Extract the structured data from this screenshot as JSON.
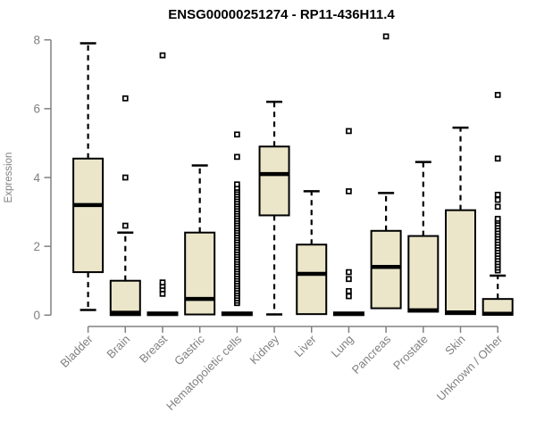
{
  "chart_data": {
    "type": "boxplot",
    "title": "ENSG00000251274 - RP11-436H11.4",
    "xlabel": "",
    "ylabel": "Expression",
    "ylim": [
      0,
      8.4
    ],
    "yticks": [
      0,
      2,
      4,
      6,
      8
    ],
    "grid": false,
    "legend": "none",
    "categories": [
      "Bladder",
      "Brain",
      "Breast",
      "Gastric",
      "Hematopoietic cells",
      "Kidney",
      "Liver",
      "Lung",
      "Pancreas",
      "Prostate",
      "Skin",
      "Unknown / Other"
    ],
    "boxes": [
      {
        "category": "Bladder",
        "whisker_low": 0.15,
        "q1": 1.25,
        "median": 3.2,
        "q3": 4.55,
        "whisker_high": 7.9,
        "outliers": []
      },
      {
        "category": "Brain",
        "whisker_low": 0,
        "q1": 0,
        "median": 0.07,
        "q3": 1.0,
        "whisker_high": 2.4,
        "outliers": [
          2.6,
          4.0,
          6.3
        ]
      },
      {
        "category": "Breast",
        "whisker_low": 0,
        "q1": 0,
        "median": 0.04,
        "q3": 0.08,
        "whisker_high": 0.12,
        "outliers": [
          0.62,
          0.75,
          0.85,
          0.95,
          7.55
        ]
      },
      {
        "category": "Gastric",
        "whisker_low": 0.02,
        "q1": 0.02,
        "median": 0.47,
        "q3": 2.4,
        "whisker_high": 4.35,
        "outliers": []
      },
      {
        "category": "Hematopoietic cells",
        "whisker_low": 0,
        "q1": 0,
        "median": 0.04,
        "q3": 0.08,
        "whisker_high": 0.12,
        "outliers": [
          0.35,
          0.42,
          0.49,
          0.56,
          0.63,
          0.7,
          0.77,
          0.84,
          0.91,
          0.98,
          1.05,
          1.12,
          1.19,
          1.26,
          1.33,
          1.4,
          1.47,
          1.54,
          1.61,
          1.68,
          1.75,
          1.82,
          1.89,
          1.96,
          2.03,
          2.1,
          2.17,
          2.24,
          2.31,
          2.38,
          2.45,
          2.52,
          2.59,
          2.66,
          2.73,
          2.8,
          2.87,
          2.94,
          3.01,
          3.08,
          3.15,
          3.22,
          3.29,
          3.36,
          3.43,
          3.5,
          3.57,
          3.64,
          3.7,
          3.8,
          4.6,
          5.25
        ]
      },
      {
        "category": "Kidney",
        "whisker_low": 0.02,
        "q1": 2.9,
        "median": 4.1,
        "q3": 4.9,
        "whisker_high": 6.2,
        "outliers": []
      },
      {
        "category": "Liver",
        "whisker_low": 0.02,
        "q1": 0.03,
        "median": 1.2,
        "q3": 2.05,
        "whisker_high": 3.6,
        "outliers": []
      },
      {
        "category": "Lung",
        "whisker_low": 0,
        "q1": 0,
        "median": 0.04,
        "q3": 0.08,
        "whisker_high": 0.12,
        "outliers": [
          0.55,
          0.7,
          1.05,
          1.25,
          3.6,
          5.35
        ]
      },
      {
        "category": "Pancreas",
        "whisker_low": 0.15,
        "q1": 0.2,
        "median": 1.4,
        "q3": 2.45,
        "whisker_high": 3.55,
        "outliers": [
          8.1
        ]
      },
      {
        "category": "Prostate",
        "whisker_low": 0.1,
        "q1": 0.1,
        "median": 0.14,
        "q3": 2.3,
        "whisker_high": 4.45,
        "outliers": []
      },
      {
        "category": "Skin",
        "whisker_low": 0.03,
        "q1": 0.03,
        "median": 0.08,
        "q3": 3.05,
        "whisker_high": 5.45,
        "outliers": []
      },
      {
        "category": "Unknown / Other",
        "whisker_low": 0,
        "q1": 0.01,
        "median": 0.04,
        "q3": 0.47,
        "whisker_high": 1.15,
        "outliers": [
          1.3,
          1.38,
          1.46,
          1.54,
          1.62,
          1.7,
          1.78,
          1.86,
          1.94,
          2.02,
          2.1,
          2.18,
          2.26,
          2.34,
          2.42,
          2.5,
          2.58,
          2.66,
          2.74,
          2.8,
          3.15,
          3.35,
          3.5,
          4.55,
          6.4
        ]
      }
    ]
  },
  "colors": {
    "box_fill": "#EBE6C9",
    "box_stroke": "#000000",
    "median": "#000000",
    "whisker": "#000000",
    "outlier_stroke": "#000000",
    "outlier_fill": "#FFFFFF",
    "axis": "#808080",
    "tick_label": "#808080",
    "axis_label": "#808080",
    "title": "#000000",
    "background": "#FFFFFF"
  }
}
